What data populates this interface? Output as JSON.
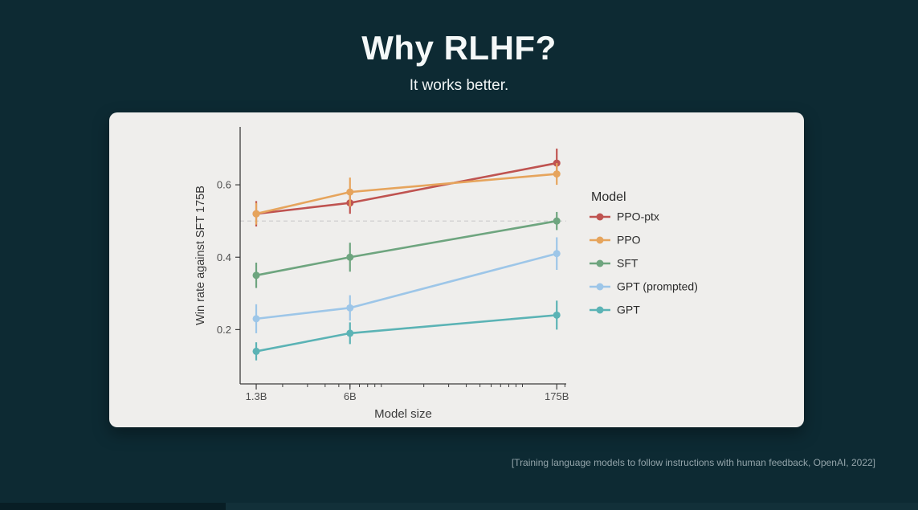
{
  "slide": {
    "title": "Why RLHF?",
    "subtitle": "It works better.",
    "citation": "[Training language models to follow instructions with human feedback, OpenAI, 2022]"
  },
  "colors": {
    "background": "#0d2a33",
    "card": "#efeeec",
    "axis": "#3d3d3d",
    "tick_text": "#4f4f4f",
    "label_text": "#3a3a3a",
    "reference_line": "#cccccc"
  },
  "chart_data": {
    "type": "line",
    "title": "",
    "xlabel": "Model size",
    "ylabel": "Win rate against SFT 175B",
    "x_scale": "log",
    "x": [
      1.3,
      6,
      175
    ],
    "x_tick_labels": [
      "1.3B",
      "6B",
      "175B"
    ],
    "y_ticks": [
      0.2,
      0.4,
      0.6
    ],
    "ylim": [
      0.05,
      0.76
    ],
    "xlim_log": [
      0.0,
      2.31
    ],
    "reference_y": 0.5,
    "grid": false,
    "legend_position": "right",
    "legend_title": "Model",
    "series": [
      {
        "name": "PPO-ptx",
        "color": "#bf5350",
        "values": [
          0.52,
          0.55,
          0.66
        ],
        "errors": [
          0.035,
          0.03,
          0.04
        ]
      },
      {
        "name": "PPO",
        "color": "#e6a45c",
        "values": [
          0.52,
          0.58,
          0.63
        ],
        "errors": [
          0.03,
          0.04,
          0.03
        ]
      },
      {
        "name": "SFT",
        "color": "#6ea57f",
        "values": [
          0.35,
          0.4,
          0.5
        ],
        "errors": [
          0.035,
          0.04,
          0.025
        ]
      },
      {
        "name": "GPT (prompted)",
        "color": "#9dc6e8",
        "values": [
          0.23,
          0.26,
          0.41
        ],
        "errors": [
          0.04,
          0.035,
          0.045
        ]
      },
      {
        "name": "GPT",
        "color": "#5bb3b5",
        "values": [
          0.14,
          0.19,
          0.24
        ],
        "errors": [
          0.025,
          0.03,
          0.04
        ]
      }
    ]
  }
}
